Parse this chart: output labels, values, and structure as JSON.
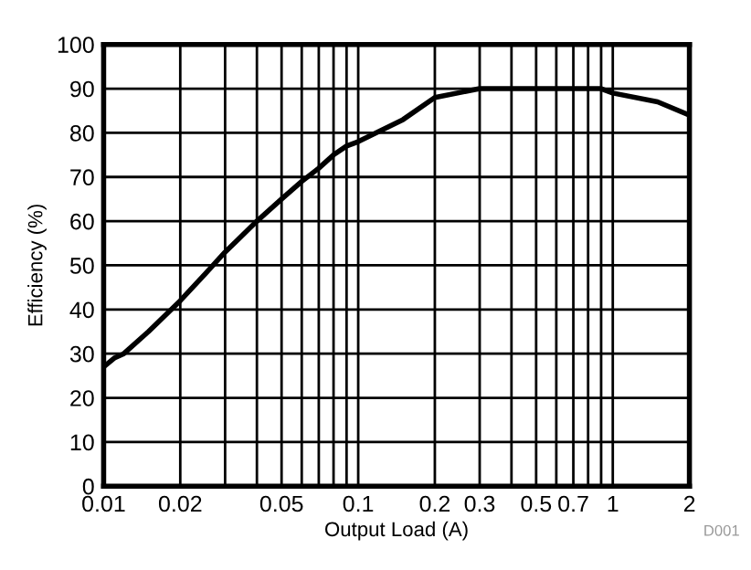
{
  "chart_data": {
    "type": "line",
    "xlabel": "Output Load (A)",
    "ylabel": "Efficiency (%)",
    "log": "x",
    "grid": true,
    "x": [
      0.01,
      0.011,
      0.012,
      0.015,
      0.02,
      0.025,
      0.03,
      0.04,
      0.05,
      0.06,
      0.07,
      0.08,
      0.09,
      0.1,
      0.15,
      0.2,
      0.3,
      0.5,
      0.7,
      0.9,
      1,
      1.5,
      2
    ],
    "series": [
      {
        "color": "#000000",
        "values": [
          27,
          29,
          30,
          35,
          42,
          48,
          53,
          60,
          65,
          69,
          72,
          75,
          77,
          78,
          83,
          88,
          90,
          90,
          90,
          90,
          89,
          87,
          84
        ]
      }
    ],
    "xlim": [
      0.01,
      2
    ],
    "ylim": [
      0,
      100
    ],
    "xticks": [
      0.01,
      0.02,
      {
        "value": 0.03,
        "label": null
      },
      {
        "value": 0.04,
        "label": null
      },
      0.05,
      {
        "value": 0.06,
        "label": null
      },
      {
        "value": 0.07,
        "label": null
      },
      {
        "value": 0.08,
        "label": null
      },
      {
        "value": 0.09,
        "label": null
      },
      0.1,
      0.2,
      0.3,
      {
        "value": 0.4,
        "label": null
      },
      0.5,
      {
        "value": 0.6,
        "label": null
      },
      0.7,
      {
        "value": 0.8,
        "label": null
      },
      {
        "value": 0.9,
        "label": null
      },
      1,
      2
    ],
    "yticks": [
      0,
      10,
      20,
      30,
      40,
      50,
      60,
      70,
      80,
      90,
      100
    ],
    "annotations": [
      "D001"
    ]
  }
}
